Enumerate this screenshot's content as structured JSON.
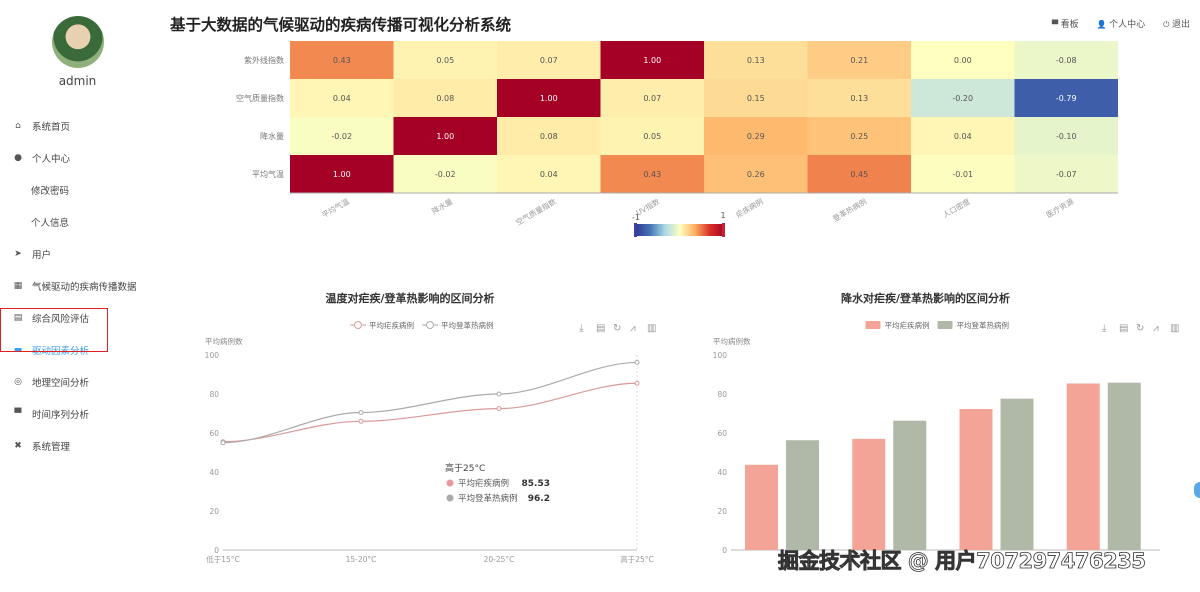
{
  "header": {
    "title": "基于大数据的气候驱动的疾病传播可视化分析系统",
    "nav": [
      {
        "icon": "monitor-icon",
        "glyph": "▀",
        "label": "看板"
      },
      {
        "icon": "user-icon",
        "glyph": "👤",
        "label": "个人中心"
      },
      {
        "icon": "power-icon",
        "glyph": "⏻",
        "label": "退出"
      }
    ]
  },
  "sidebar": {
    "username": "admin",
    "items": [
      {
        "label": "系统首页",
        "icon": "home-icon",
        "glyph": "⌂"
      },
      {
        "label": "个人中心",
        "icon": "user-icon",
        "glyph": "●"
      },
      {
        "label": "修改密码",
        "sub": true
      },
      {
        "label": "个人信息",
        "sub": true
      },
      {
        "label": "用户",
        "icon": "send-icon",
        "glyph": "➤"
      },
      {
        "label": "气候驱动的疾病传播数据",
        "icon": "grid-icon",
        "glyph": "▦"
      },
      {
        "label": "综合风险评估",
        "icon": "table-icon",
        "glyph": "▤"
      },
      {
        "label": "驱动因素分析",
        "icon": "briefcase-icon",
        "glyph": "▬",
        "active": true
      },
      {
        "label": "地理空间分析",
        "icon": "compass-icon",
        "glyph": "◎"
      },
      {
        "label": "时间序列分析",
        "icon": "chat-icon",
        "glyph": "▀"
      },
      {
        "label": "系统管理",
        "icon": "settings-icon",
        "glyph": "✖"
      }
    ]
  },
  "accent": "#3a9ff0",
  "chart_data": [
    {
      "type": "heatmap",
      "x_categories": [
        "平均气温",
        "降水量",
        "空气质量指数",
        "UV指数",
        "疟疾病例",
        "登革热病例",
        "人口密度",
        "医疗资源"
      ],
      "y_categories": [
        "平均气温",
        "降水量",
        "空气质量指数",
        "紫外线指数"
      ],
      "values": [
        [
          1.0,
          -0.02,
          0.04,
          0.43,
          0.26,
          0.45,
          -0.01,
          -0.07
        ],
        [
          -0.02,
          1.0,
          0.08,
          0.05,
          0.29,
          0.25,
          0.04,
          -0.1
        ],
        [
          0.04,
          0.08,
          1.0,
          0.07,
          0.15,
          0.13,
          -0.2,
          -0.79
        ],
        [
          0.43,
          0.05,
          0.07,
          1.0,
          0.13,
          0.21,
          0.0,
          -0.08
        ]
      ],
      "visual_map": {
        "min": -1,
        "max": 1,
        "min_label": "-1",
        "max_label": "1",
        "colors": [
          "#313695",
          "#4575b4",
          "#abd9e9",
          "#ffffbf",
          "#fdae61",
          "#d73027",
          "#a50026"
        ]
      }
    },
    {
      "type": "line",
      "title": "温度对疟疾/登革热影响的区间分析",
      "ylabel": "平均病例数",
      "ylim": [
        0,
        100
      ],
      "yticks": [
        0,
        20,
        40,
        60,
        80,
        100
      ],
      "categories": [
        "低于15°C",
        "15-20°C",
        "20-25°C",
        "高于25°C"
      ],
      "series": [
        {
          "name": "平均疟疾病例",
          "color": "#d99a9a",
          "values": [
            55.5,
            66,
            72.5,
            85.53
          ]
        },
        {
          "name": "平均登革热病例",
          "color": "#aaaaaa",
          "values": [
            55,
            70.5,
            80,
            96.2
          ]
        }
      ],
      "tooltip": {
        "title": "高于25°C",
        "rows": [
          {
            "name": "平均疟疾病例",
            "value": "85.53",
            "color": "#e89a9a"
          },
          {
            "name": "平均登革热病例",
            "value": "96.2",
            "color": "#aaaaaa"
          }
        ]
      },
      "legend": "top"
    },
    {
      "type": "bar",
      "title": "降水对疟疾/登革热影响的区间分析",
      "ylabel": "平均病例数",
      "ylim": [
        0,
        100
      ],
      "yticks": [
        0,
        20,
        40,
        60,
        80,
        100
      ],
      "series": [
        {
          "name": "平均疟疾病例",
          "color": "#f4a496",
          "values": [
            43.7,
            57,
            72.3,
            85.4
          ]
        },
        {
          "name": "平均登革热病例",
          "color": "#b0b8a8",
          "values": [
            56.3,
            66.3,
            77.6,
            85.8
          ]
        }
      ],
      "legend": "top"
    }
  ],
  "toolbox": [
    {
      "icon": "download-icon",
      "glyph": "⤓"
    },
    {
      "icon": "data-view-icon",
      "glyph": "▤"
    },
    {
      "icon": "restore-icon",
      "glyph": "↻"
    },
    {
      "icon": "line-switch-icon",
      "glyph": "⩘"
    },
    {
      "icon": "bar-switch-icon",
      "glyph": "▥"
    }
  ],
  "watermark": "掘金技术社区 @ 用户707297476235"
}
